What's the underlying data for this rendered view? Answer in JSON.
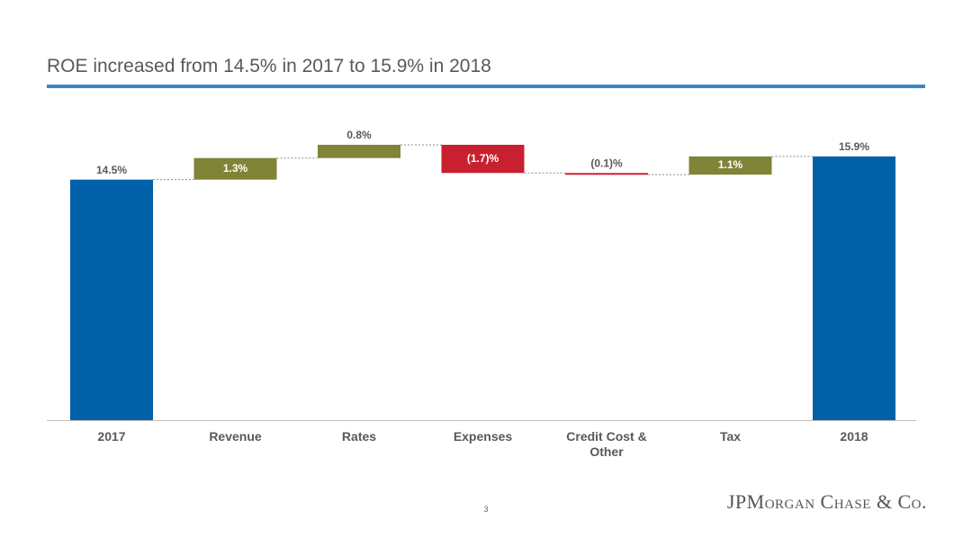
{
  "chart_data": {
    "type": "waterfall",
    "title": "ROE increased from 14.5% in 2017 to 15.9% in 2018",
    "categories": [
      "2017",
      "Revenue",
      "Rates",
      "Expenses",
      "Credit Cost & Other",
      "Tax",
      "2018"
    ],
    "values": [
      14.5,
      1.3,
      0.8,
      -1.7,
      -0.1,
      1.1,
      15.9
    ],
    "value_labels": [
      "14.5%",
      "1.3%",
      "0.8%",
      "(1.7)%",
      "(0.1)%",
      "1.1%",
      "15.9%"
    ],
    "colors": [
      "#0061a8",
      "#7f8436",
      "#7f8436",
      "#c8202f",
      "#c8202f",
      "#7f8436",
      "#0061a8"
    ],
    "ylim": [
      0,
      16
    ]
  },
  "footer": {
    "page": "3",
    "logo": "JPMorgan Chase & Co."
  }
}
